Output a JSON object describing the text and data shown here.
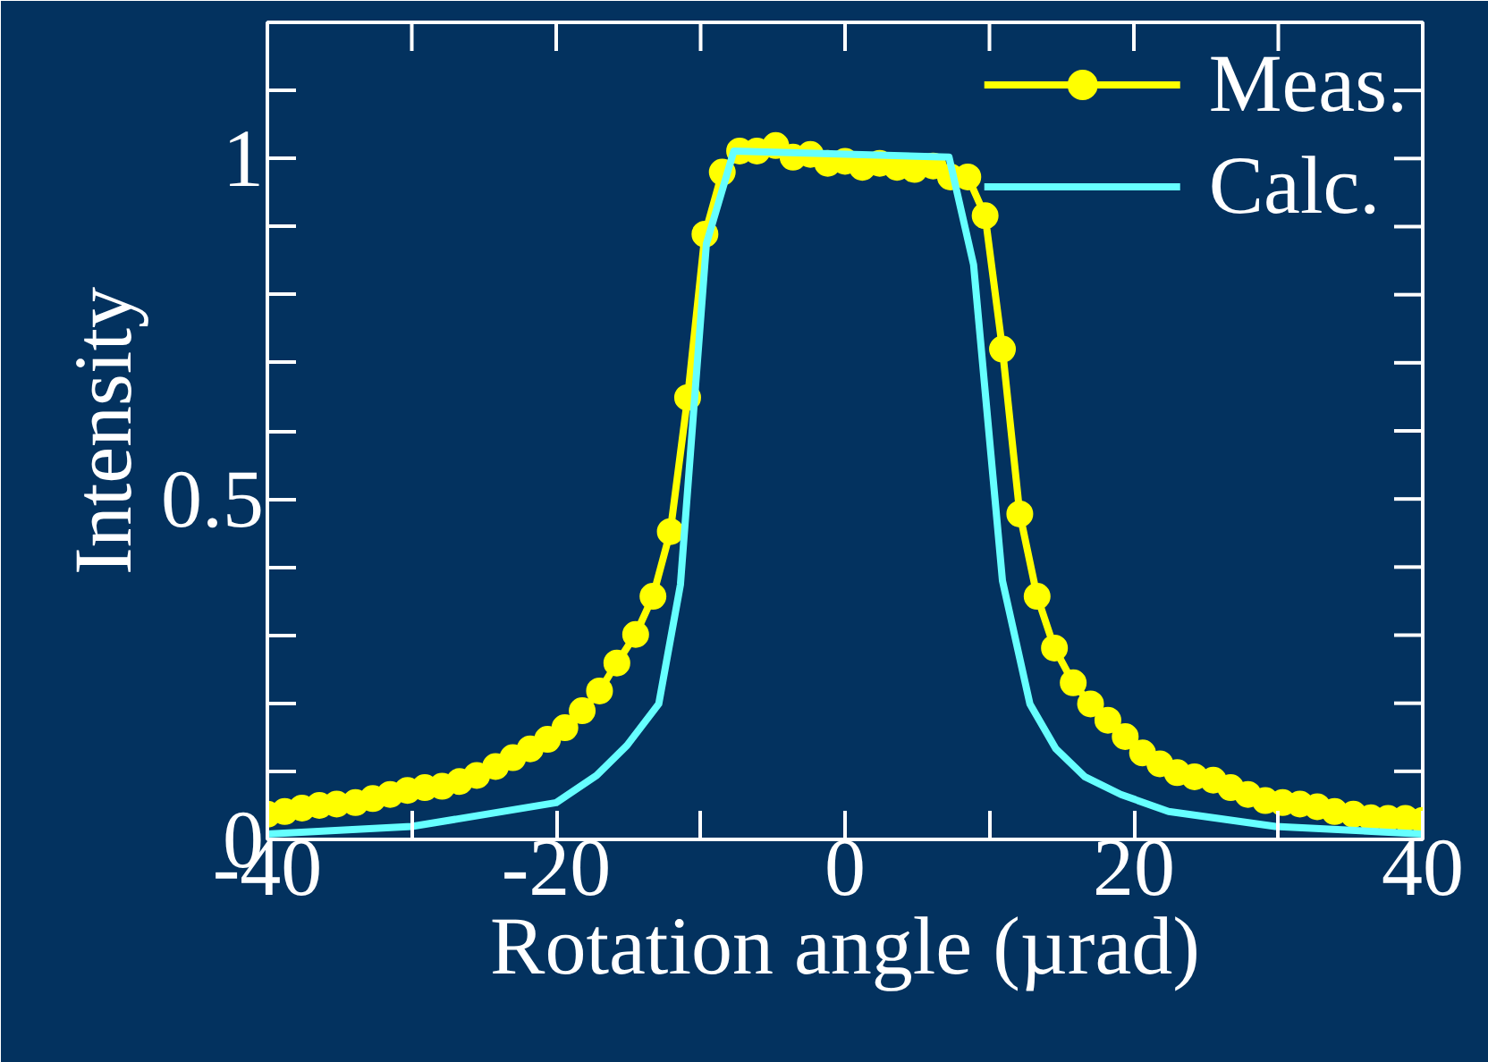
{
  "chart_data": {
    "type": "line",
    "xlabel": "Rotation angle (µrad)",
    "ylabel": "Intensity",
    "xlim": [
      -40,
      40
    ],
    "ylim": [
      0,
      1.2
    ],
    "xticks": [
      -40,
      {
        "value": -30,
        "label": null
      },
      -20,
      {
        "value": -10,
        "label": null
      },
      0,
      {
        "value": 10,
        "label": null
      },
      20,
      {
        "value": 30,
        "label": null
      },
      40
    ],
    "yticks": [
      0,
      {
        "value": 0.1,
        "label": null
      },
      {
        "value": 0.2,
        "label": null
      },
      {
        "value": 0.3,
        "label": null
      },
      {
        "value": 0.4,
        "label": null
      },
      0.5,
      {
        "value": 0.6,
        "label": null
      },
      {
        "value": 0.7,
        "label": null
      },
      {
        "value": 0.8,
        "label": null
      },
      {
        "value": 0.9,
        "label": null
      },
      1,
      {
        "value": 1.1,
        "label": null
      },
      {
        "value": 1.2,
        "label": null
      }
    ],
    "grid": false,
    "legend": "top right",
    "series": [
      {
        "name": "Meas.",
        "color": "#ffff00",
        "marker": "circle",
        "x": [
          -40.0,
          -38.8,
          -37.6,
          -36.4,
          -35.2,
          -33.9,
          -32.7,
          -31.5,
          -30.3,
          -29.1,
          -27.9,
          -26.7,
          -25.5,
          -24.2,
          -23.0,
          -21.8,
          -20.6,
          -19.4,
          -18.2,
          -17.0,
          -15.8,
          -14.5,
          -13.3,
          -12.1,
          -10.9,
          -9.7,
          -8.5,
          -7.3,
          -6.1,
          -4.8,
          -3.6,
          -2.4,
          -1.2,
          0.0,
          1.2,
          2.4,
          3.6,
          4.8,
          6.1,
          7.3,
          8.5,
          9.7,
          10.9,
          12.1,
          13.3,
          14.5,
          15.8,
          17.0,
          18.2,
          19.4,
          20.6,
          21.8,
          23.0,
          24.2,
          25.5,
          26.7,
          27.9,
          29.1,
          30.3,
          31.5,
          32.7,
          33.9,
          35.2,
          36.4,
          37.6,
          38.8,
          40.0
        ],
        "values": [
          0.037,
          0.041,
          0.046,
          0.05,
          0.052,
          0.054,
          0.06,
          0.066,
          0.072,
          0.076,
          0.078,
          0.085,
          0.094,
          0.107,
          0.12,
          0.133,
          0.147,
          0.164,
          0.189,
          0.218,
          0.259,
          0.301,
          0.357,
          0.452,
          0.649,
          0.889,
          0.98,
          1.011,
          1.011,
          1.019,
          1.002,
          1.006,
          0.993,
          0.996,
          0.987,
          0.993,
          0.987,
          0.984,
          0.989,
          0.973,
          0.973,
          0.916,
          0.72,
          0.478,
          0.357,
          0.281,
          0.23,
          0.199,
          0.175,
          0.151,
          0.127,
          0.111,
          0.098,
          0.092,
          0.087,
          0.076,
          0.066,
          0.057,
          0.054,
          0.052,
          0.048,
          0.041,
          0.037,
          0.032,
          0.031,
          0.031,
          0.028
        ]
      },
      {
        "name": "Calc.",
        "color": "#66ffff",
        "marker": "none",
        "x": [
          -40,
          -30,
          -20,
          -17.2,
          -15.1,
          -12.9,
          -11.4,
          -9.6,
          -7.7,
          7.2,
          8.9,
          10.9,
          12.8,
          14.6,
          16.6,
          19.1,
          22.4,
          29.8,
          40
        ],
        "values": [
          0.008,
          0.019,
          0.054,
          0.094,
          0.138,
          0.199,
          0.374,
          0.875,
          1.011,
          1.002,
          0.844,
          0.38,
          0.199,
          0.133,
          0.092,
          0.066,
          0.041,
          0.019,
          0.008
        ]
      }
    ]
  }
}
